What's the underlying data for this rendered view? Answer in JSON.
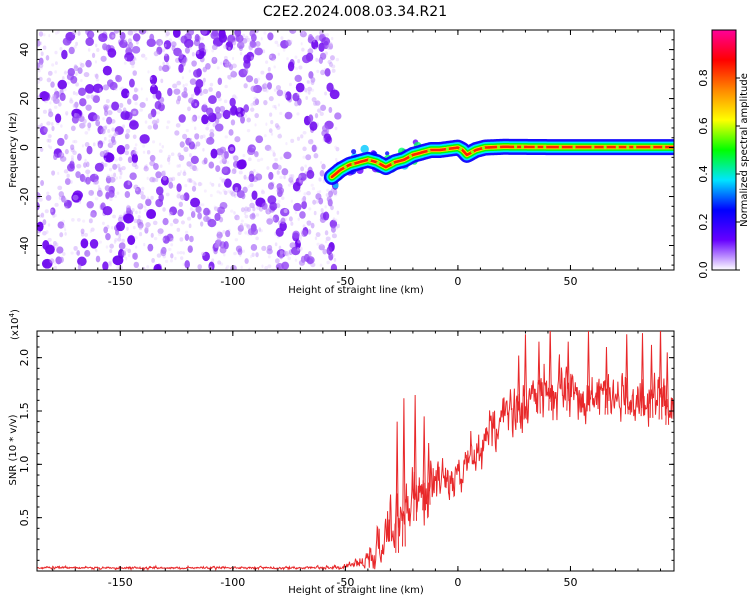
{
  "title": "C2E2.2024.008.03.34.R21",
  "colors": {
    "snr_line": "#e8282a",
    "axis": "#000000",
    "scatter_low": "#e7d2ff",
    "scatter_high": "#6a00ee"
  },
  "chart_data": [
    {
      "type": "heatmap",
      "name": "spectrogram",
      "xlabel": "Height of straight line (km)",
      "ylabel": "Frequency (Hz)",
      "xlim": [
        -187,
        96
      ],
      "ylim": [
        -50,
        48
      ],
      "xticks": [
        -150,
        -100,
        -50,
        0,
        50
      ],
      "yticks": [
        -40,
        -20,
        0,
        20,
        40
      ],
      "noise_region_x": [
        -187,
        -56
      ],
      "ridge": {
        "x": [
          -56,
          -52,
          -48,
          -44,
          -40,
          -36,
          -32,
          -28,
          -24,
          -20,
          -16,
          -12,
          -8,
          -4,
          0,
          2,
          4,
          6,
          8,
          12,
          20,
          40,
          60,
          80,
          96
        ],
        "y": [
          -12,
          -9,
          -7,
          -6,
          -5,
          -6,
          -8,
          -6,
          -5,
          -3,
          -2,
          -1,
          -1,
          -0.5,
          0,
          -1,
          -3,
          -2,
          -1,
          0,
          0.3,
          0.2,
          0.2,
          0.2,
          0.2
        ]
      },
      "colorbar": {
        "label": "Normalized spectral amplitude",
        "range": [
          0,
          1
        ],
        "ticks": [
          "0.0",
          "0.2",
          "0.4",
          "0.6",
          "0.8"
        ],
        "colormap": "rainbow",
        "colormap_stops": [
          "#ffffff",
          "#6600ff",
          "#0000ff",
          "#00e5ff",
          "#00ff00",
          "#ffff00",
          "#ff8800",
          "#ff0000",
          "#ff0099"
        ]
      }
    },
    {
      "type": "line",
      "name": "snr",
      "xlabel": "Height of straight line (km)",
      "ylabel": "SNR (10 * v/v)",
      "scale_label": "(x10",
      "scale_exp": "4",
      "scale_close": ")",
      "xlim": [
        -187,
        96
      ],
      "ylim": [
        0,
        22500
      ],
      "xticks": [
        -150,
        -100,
        -50,
        0,
        50
      ],
      "yticks": [
        5000,
        10000,
        15000,
        20000
      ],
      "ytick_labels": [
        "0.5",
        "1.0",
        "1.5",
        "2.0"
      ],
      "series": [
        {
          "x": [
            -187,
            -60,
            -50,
            -45,
            -40,
            -36,
            -32,
            -30,
            -28,
            -26,
            -24,
            -22,
            -20,
            -18,
            -16,
            -14,
            -12,
            -10,
            -6,
            -2,
            0,
            2,
            6,
            10,
            14,
            20,
            25,
            30,
            35,
            40,
            45,
            50,
            55,
            60,
            65,
            70,
            75,
            80,
            85,
            90,
            93,
            96
          ],
          "mean": [
            300,
            300,
            400,
            700,
            1200,
            2000,
            3000,
            3500,
            4200,
            4600,
            5000,
            6000,
            6600,
            7000,
            7400,
            7700,
            8200,
            8400,
            8800,
            9000,
            9500,
            10000,
            10500,
            11500,
            13000,
            14500,
            15500,
            16000,
            16500,
            16800,
            17000,
            16800,
            16700,
            16800,
            16500,
            16300,
            16500,
            16400,
            16200,
            16000,
            15500,
            14500
          ],
          "noise": [
            150,
            150,
            300,
            600,
            1500,
            2500,
            3500,
            4200,
            4500,
            4500,
            4500,
            4000,
            3500,
            3500,
            3200,
            3000,
            2800,
            2600,
            2400,
            2400,
            2400,
            2400,
            2400,
            2500,
            2600,
            2800,
            3000,
            3000,
            3000,
            3000,
            3000,
            3000,
            3000,
            3000,
            3000,
            3000,
            3000,
            3000,
            3000,
            3000,
            3000,
            3000
          ],
          "spikes": [
            [
              -27,
              14000
            ],
            [
              -24,
              16200
            ],
            [
              -19,
              16500
            ],
            [
              -15,
              14500
            ],
            [
              -13,
              12000
            ],
            [
              27,
              20200
            ],
            [
              30,
              22200
            ],
            [
              36,
              21500
            ],
            [
              41,
              23000
            ],
            [
              49,
              21500
            ],
            [
              58,
              22500
            ],
            [
              66,
              21000
            ],
            [
              75,
              22200
            ],
            [
              82,
              22300
            ],
            [
              86,
              21200
            ],
            [
              90,
              23000
            ],
            [
              93,
              20500
            ]
          ]
        }
      ]
    }
  ]
}
